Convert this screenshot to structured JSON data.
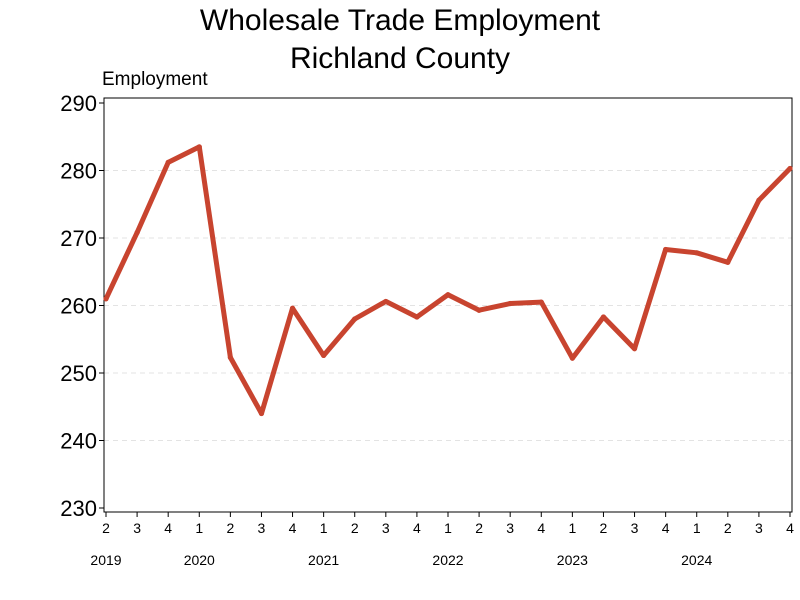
{
  "chart_data": {
    "type": "line",
    "title_line1": "Wholesale Trade Employment",
    "title_line2": "Richland County",
    "ylabel": "Employment",
    "xlabel": "",
    "ylim": [
      230,
      290
    ],
    "yticks": [
      230,
      240,
      250,
      260,
      270,
      280,
      290
    ],
    "grid": true,
    "categories": [
      "2",
      "3",
      "4",
      "1",
      "2",
      "3",
      "4",
      "1",
      "2",
      "3",
      "4",
      "1",
      "2",
      "3",
      "4",
      "1",
      "2",
      "3",
      "4",
      "1",
      "2",
      "3",
      "4"
    ],
    "year_labels": [
      {
        "label": "2019",
        "index": 0
      },
      {
        "label": "2020",
        "index": 3
      },
      {
        "label": "2021",
        "index": 7
      },
      {
        "label": "2022",
        "index": 11
      },
      {
        "label": "2023",
        "index": 15
      },
      {
        "label": "2024",
        "index": 19
      }
    ],
    "series": [
      {
        "color": "#c8442f",
        "x": [
          "2019 Q2",
          "2019 Q3",
          "2019 Q4",
          "2020 Q1",
          "2020 Q2",
          "2020 Q3",
          "2020 Q4",
          "2021 Q1",
          "2021 Q2",
          "2021 Q3",
          "2021 Q4",
          "2022 Q1",
          "2022 Q2",
          "2022 Q3",
          "2022 Q4",
          "2023 Q1",
          "2023 Q2",
          "2023 Q3",
          "2023 Q4",
          "2024 Q1",
          "2024 Q2",
          "2024 Q3",
          "2024 Q4"
        ],
        "values": [
          261.0,
          270.8,
          281.2,
          283.5,
          252.3,
          244.0,
          259.6,
          252.6,
          258.0,
          260.6,
          258.3,
          261.6,
          259.3,
          260.3,
          260.5,
          252.2,
          258.3,
          253.6,
          268.3,
          267.8,
          266.4,
          275.6,
          280.3
        ]
      }
    ]
  }
}
